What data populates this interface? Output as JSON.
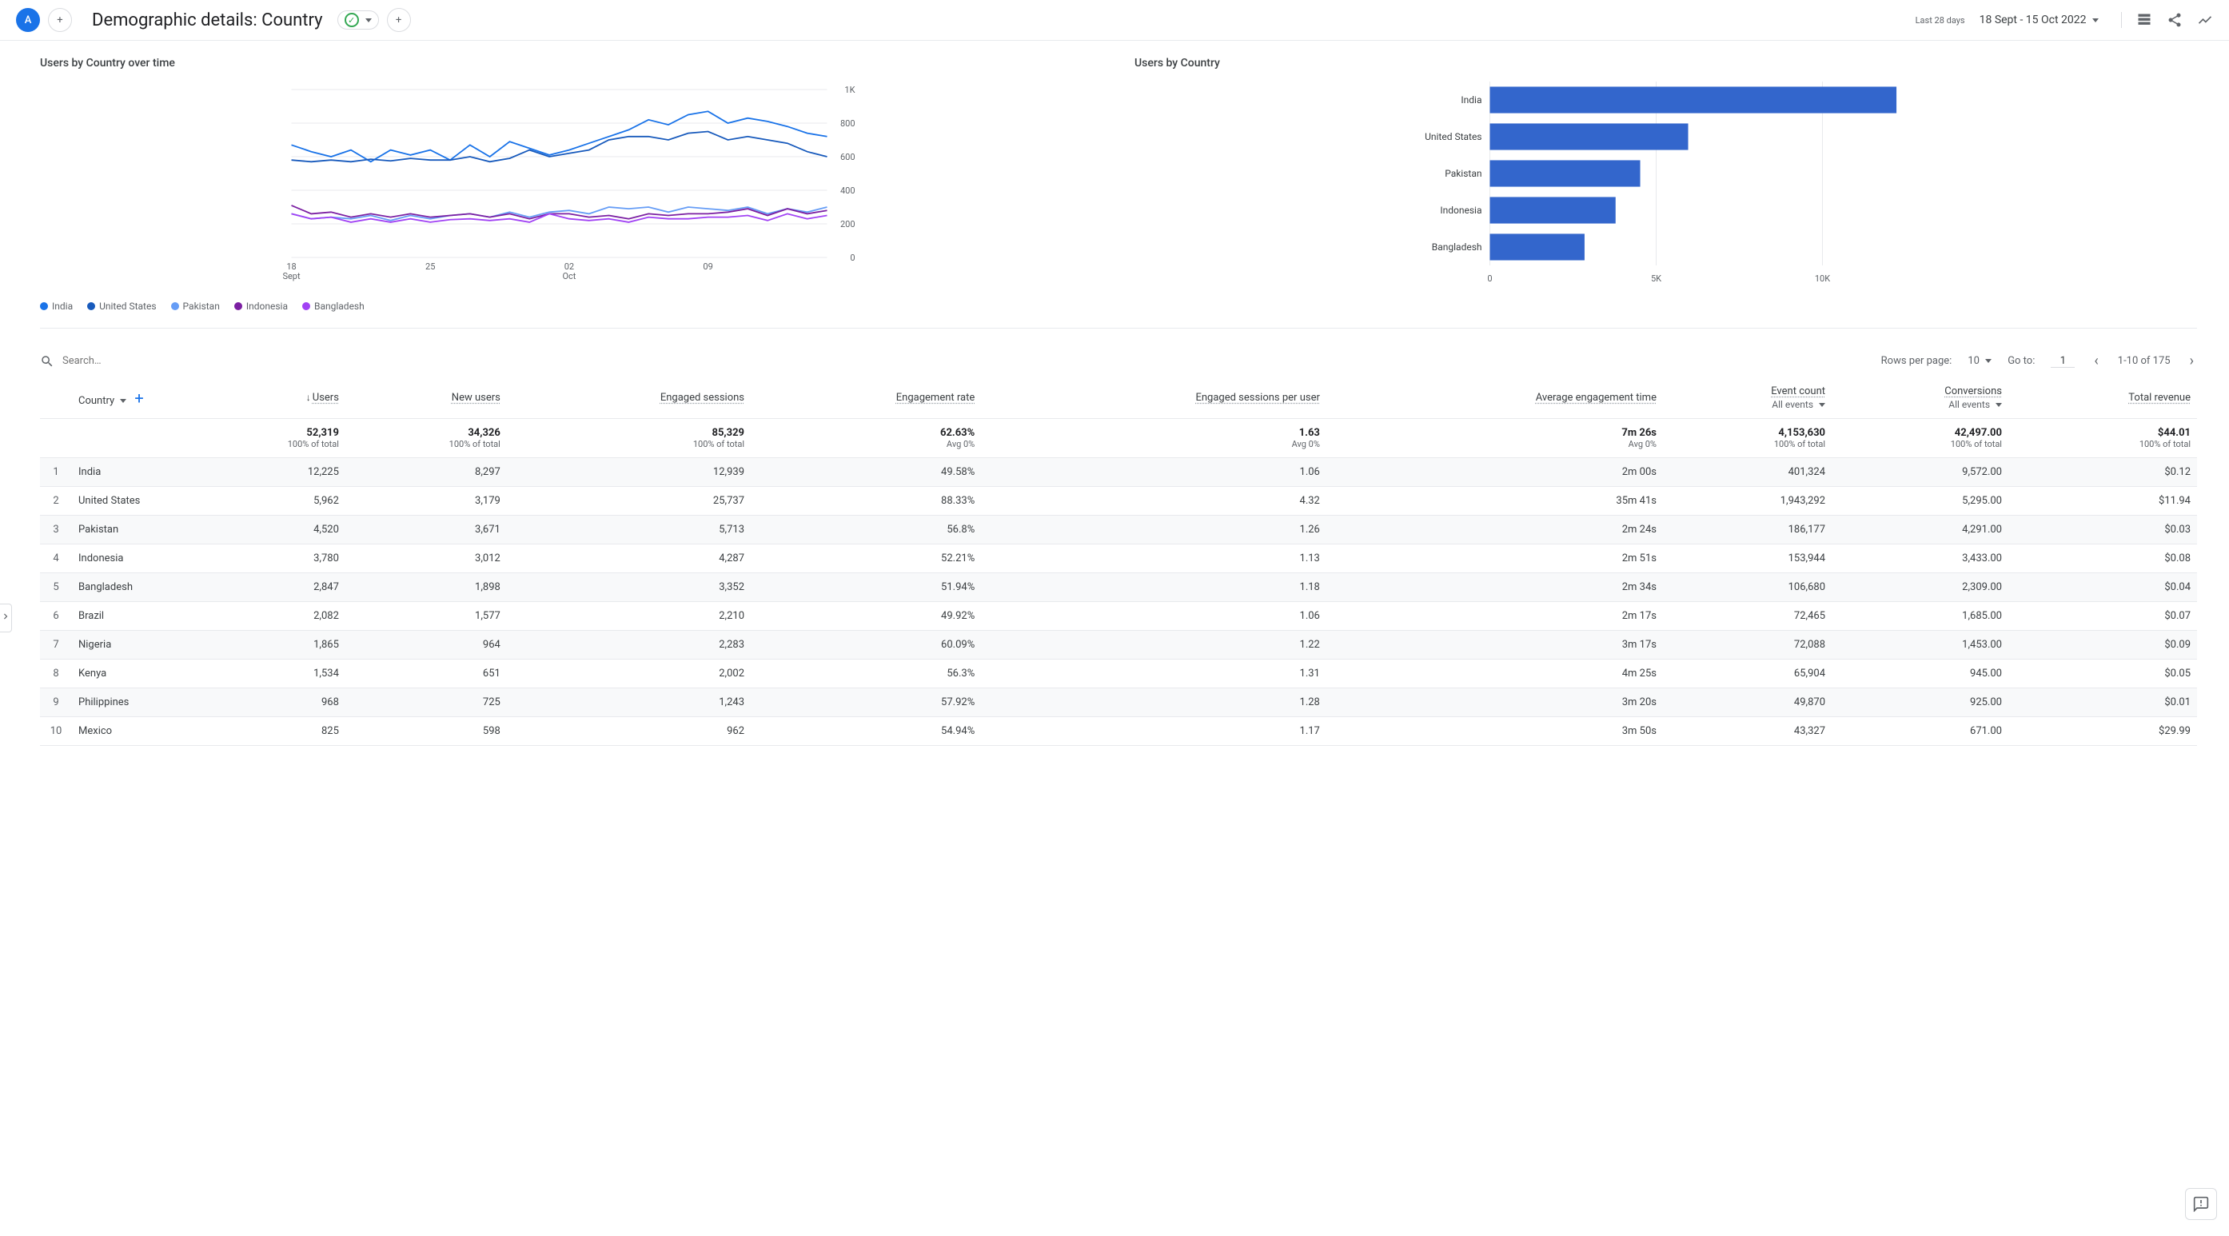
{
  "header": {
    "avatar_letter": "A",
    "page_title": "Demographic details: Country",
    "date_label": "Last 28 days",
    "date_range": "18 Sept - 15 Oct 2022"
  },
  "line_chart": {
    "type": "line",
    "title": "Users by Country over time",
    "ylim": [
      0,
      1000
    ],
    "yticks": [
      0,
      200,
      400,
      600,
      800,
      1000
    ],
    "ytick_labels": [
      "0",
      "200",
      "400",
      "600",
      "800",
      "1K"
    ],
    "x_labels": [
      "18\nSept",
      "25",
      "02\nOct",
      "09"
    ],
    "grid_color": "#e8eaed",
    "background_color": "#ffffff",
    "series": [
      {
        "name": "India",
        "color": "#1a73e8",
        "values": [
          670,
          630,
          600,
          640,
          570,
          640,
          610,
          640,
          580,
          670,
          600,
          690,
          650,
          610,
          640,
          680,
          720,
          760,
          820,
          790,
          850,
          870,
          800,
          830,
          810,
          780,
          740,
          720
        ]
      },
      {
        "name": "United States",
        "color": "#185abc",
        "values": [
          580,
          570,
          580,
          570,
          585,
          575,
          590,
          580,
          580,
          600,
          570,
          590,
          640,
          600,
          620,
          640,
          700,
          720,
          720,
          700,
          740,
          750,
          700,
          720,
          700,
          680,
          630,
          600
        ]
      },
      {
        "name": "Pakistan",
        "color": "#669df6",
        "values": [
          260,
          230,
          240,
          230,
          250,
          220,
          250,
          230,
          250,
          260,
          240,
          270,
          240,
          270,
          280,
          260,
          300,
          290,
          300,
          270,
          300,
          290,
          280,
          300,
          260,
          290,
          270,
          300
        ]
      },
      {
        "name": "Indonesia",
        "color": "#7b1fa2",
        "values": [
          310,
          260,
          270,
          240,
          260,
          240,
          260,
          240,
          250,
          260,
          240,
          260,
          230,
          260,
          260,
          240,
          250,
          230,
          260,
          250,
          260,
          260,
          270,
          290,
          250,
          290,
          260,
          280
        ]
      },
      {
        "name": "Bangladesh",
        "color": "#a142f4",
        "values": [
          260,
          230,
          240,
          210,
          230,
          210,
          230,
          210,
          225,
          230,
          220,
          230,
          210,
          260,
          230,
          220,
          230,
          210,
          240,
          230,
          230,
          240,
          240,
          250,
          220,
          260,
          230,
          250
        ]
      }
    ]
  },
  "bar_chart": {
    "type": "bar",
    "title": "Users by Country",
    "xlim": [
      0,
      12500
    ],
    "xticks": [
      0,
      5000,
      10000
    ],
    "xtick_labels": [
      "0",
      "5K",
      "10K"
    ],
    "bar_color": "#3366cc",
    "grid_color": "#e8eaed",
    "bars": [
      {
        "label": "India",
        "value": 12225
      },
      {
        "label": "United States",
        "value": 5962
      },
      {
        "label": "Pakistan",
        "value": 4520
      },
      {
        "label": "Indonesia",
        "value": 3780
      },
      {
        "label": "Bangladesh",
        "value": 2847
      }
    ]
  },
  "table_controls": {
    "search_placeholder": "Search…",
    "rows_per_page_label": "Rows per page:",
    "rows_per_page": "10",
    "goto_label": "Go to:",
    "goto_value": "1",
    "page_info": "1-10 of 175"
  },
  "table": {
    "dimension_label": "Country",
    "columns": [
      {
        "label": "Users",
        "sub": "",
        "sorted": true
      },
      {
        "label": "New users",
        "sub": ""
      },
      {
        "label": "Engaged sessions",
        "sub": ""
      },
      {
        "label": "Engagement rate",
        "sub": ""
      },
      {
        "label": "Engaged sessions per user",
        "sub": ""
      },
      {
        "label": "Average engagement time",
        "sub": ""
      },
      {
        "label": "Event count",
        "sub": "All events"
      },
      {
        "label": "Conversions",
        "sub": "All events"
      },
      {
        "label": "Total revenue",
        "sub": ""
      }
    ],
    "totals": {
      "values": [
        "52,319",
        "34,326",
        "85,329",
        "62.63%",
        "1.63",
        "7m 26s",
        "4,153,630",
        "42,497.00",
        "$44.01"
      ],
      "subs": [
        "100% of total",
        "100% of total",
        "100% of total",
        "Avg 0%",
        "Avg 0%",
        "Avg 0%",
        "100% of total",
        "100% of total",
        "100% of total"
      ]
    },
    "rows": [
      {
        "idx": "1",
        "country": "India",
        "cells": [
          "12,225",
          "8,297",
          "12,939",
          "49.58%",
          "1.06",
          "2m 00s",
          "401,324",
          "9,572.00",
          "$0.12"
        ]
      },
      {
        "idx": "2",
        "country": "United States",
        "cells": [
          "5,962",
          "3,179",
          "25,737",
          "88.33%",
          "4.32",
          "35m 41s",
          "1,943,292",
          "5,295.00",
          "$11.94"
        ]
      },
      {
        "idx": "3",
        "country": "Pakistan",
        "cells": [
          "4,520",
          "3,671",
          "5,713",
          "56.8%",
          "1.26",
          "2m 24s",
          "186,177",
          "4,291.00",
          "$0.03"
        ]
      },
      {
        "idx": "4",
        "country": "Indonesia",
        "cells": [
          "3,780",
          "3,012",
          "4,287",
          "52.21%",
          "1.13",
          "2m 51s",
          "153,944",
          "3,433.00",
          "$0.08"
        ]
      },
      {
        "idx": "5",
        "country": "Bangladesh",
        "cells": [
          "2,847",
          "1,898",
          "3,352",
          "51.94%",
          "1.18",
          "2m 34s",
          "106,680",
          "2,309.00",
          "$0.04"
        ]
      },
      {
        "idx": "6",
        "country": "Brazil",
        "cells": [
          "2,082",
          "1,577",
          "2,210",
          "49.92%",
          "1.06",
          "2m 17s",
          "72,465",
          "1,685.00",
          "$0.07"
        ]
      },
      {
        "idx": "7",
        "country": "Nigeria",
        "cells": [
          "1,865",
          "964",
          "2,283",
          "60.09%",
          "1.22",
          "3m 17s",
          "72,088",
          "1,453.00",
          "$0.09"
        ]
      },
      {
        "idx": "8",
        "country": "Kenya",
        "cells": [
          "1,534",
          "651",
          "2,002",
          "56.3%",
          "1.31",
          "4m 25s",
          "65,904",
          "945.00",
          "$0.05"
        ]
      },
      {
        "idx": "9",
        "country": "Philippines",
        "cells": [
          "968",
          "725",
          "1,243",
          "57.92%",
          "1.28",
          "3m 20s",
          "49,870",
          "925.00",
          "$0.01"
        ]
      },
      {
        "idx": "10",
        "country": "Mexico",
        "cells": [
          "825",
          "598",
          "962",
          "54.94%",
          "1.17",
          "3m 50s",
          "43,327",
          "671.00",
          "$29.99"
        ]
      }
    ]
  }
}
